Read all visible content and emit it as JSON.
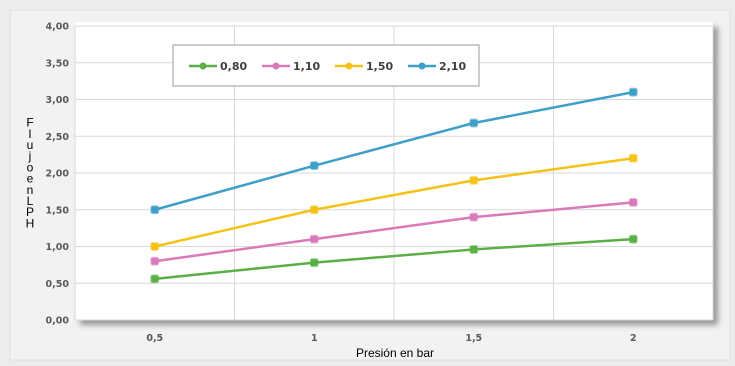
{
  "chart_data": {
    "type": "line",
    "xlabel": "Presión en bar",
    "ylabel": "Flujo en LPH",
    "x": [
      0.5,
      1,
      1.5,
      2
    ],
    "x_tick_labels": [
      "0,5",
      "1",
      "1,5",
      "2"
    ],
    "ylim": [
      0,
      4
    ],
    "y_tick_labels": [
      "0,00",
      "0,50",
      "1,00",
      "1,50",
      "2,00",
      "2,50",
      "3,00",
      "3,50",
      "4,00"
    ],
    "grid": true,
    "legend_position": "top-center",
    "series": [
      {
        "name": "0,80",
        "color": "#5aaf46",
        "values": [
          0.56,
          0.78,
          0.96,
          1.1
        ]
      },
      {
        "name": "1,10",
        "color": "#d87bb8",
        "values": [
          0.8,
          1.1,
          1.4,
          1.6
        ]
      },
      {
        "name": "1,50",
        "color": "#f5c216",
        "values": [
          1.0,
          1.5,
          1.9,
          2.2
        ]
      },
      {
        "name": "2,10",
        "color": "#3e9fc8",
        "values": [
          1.5,
          2.1,
          2.68,
          3.1
        ]
      }
    ]
  }
}
